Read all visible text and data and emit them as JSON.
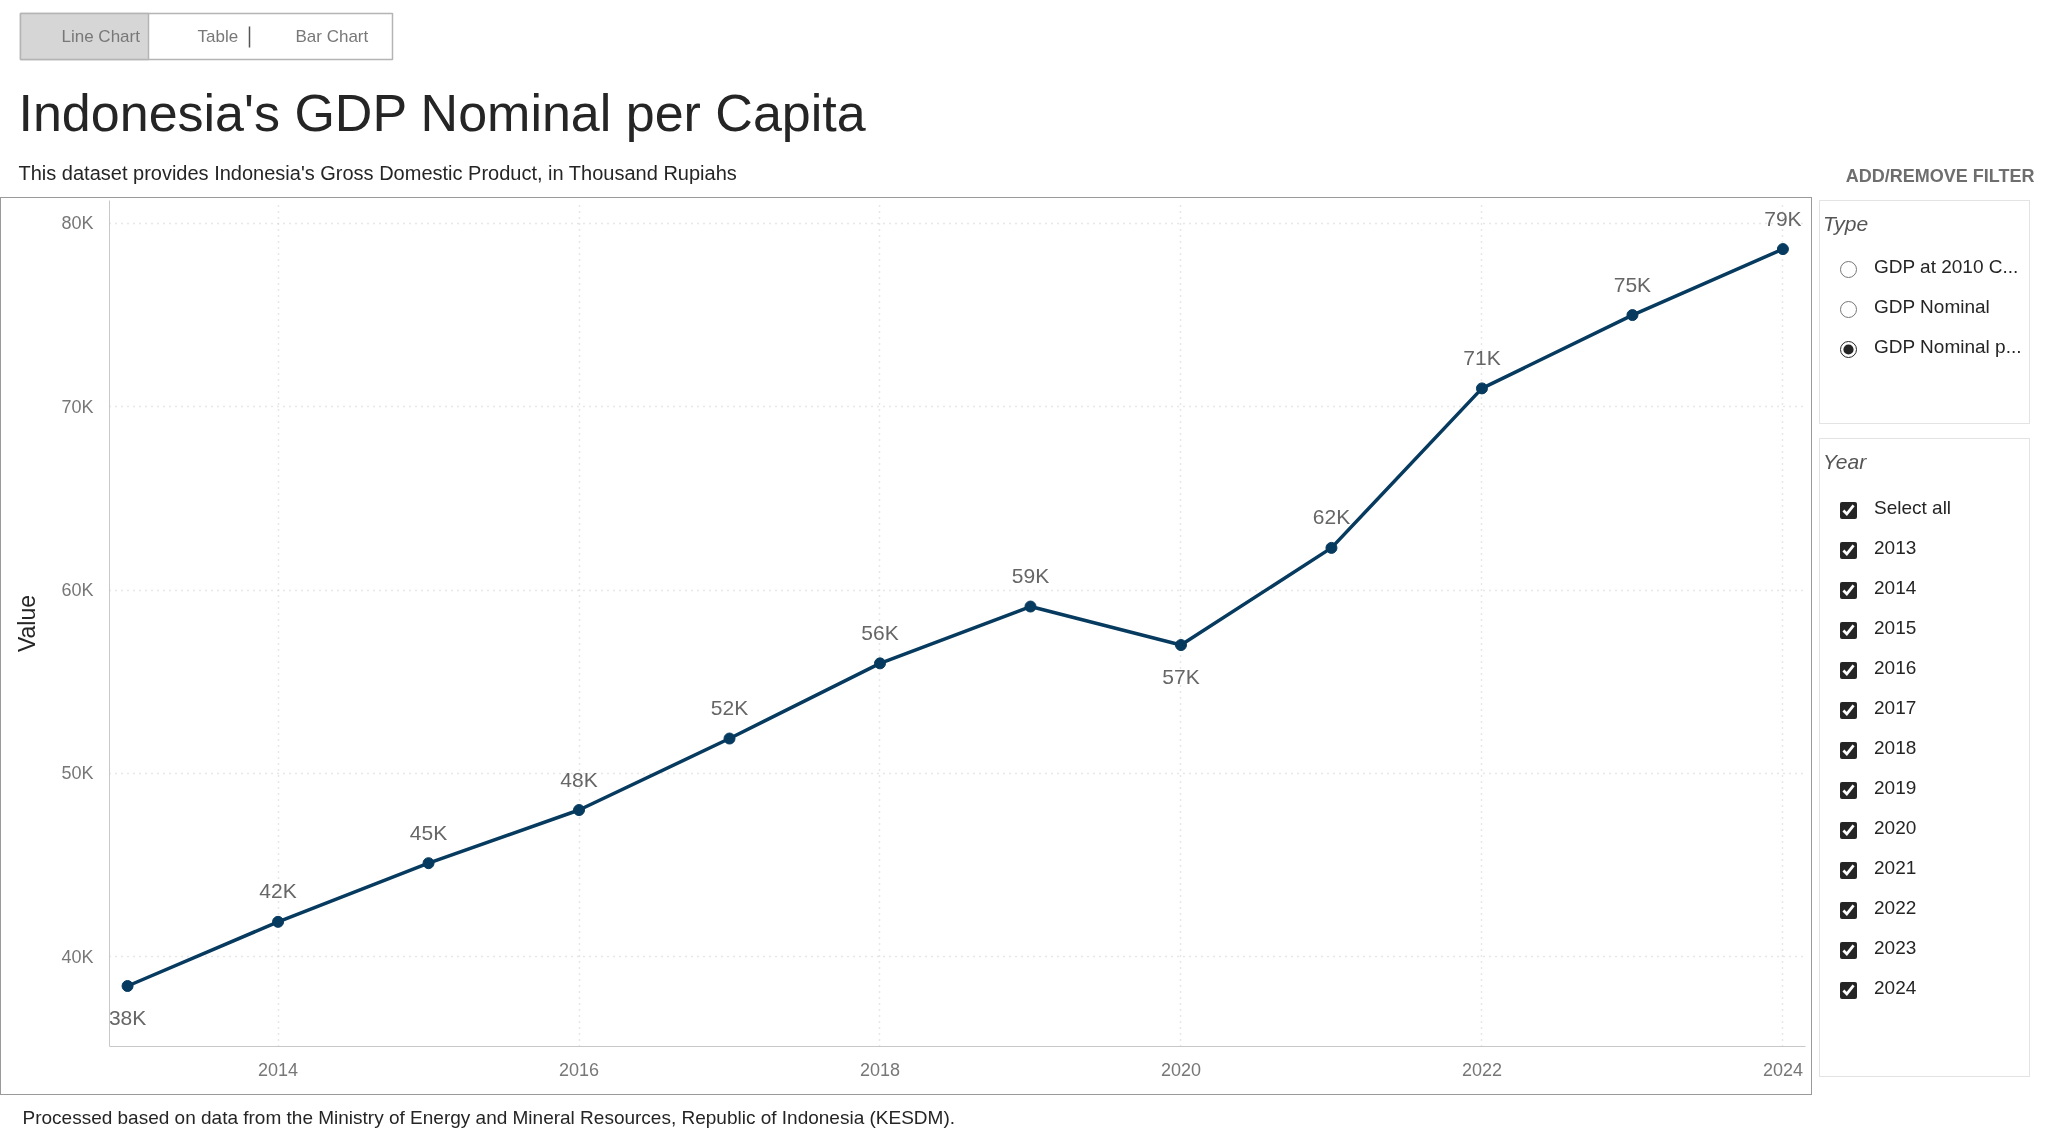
{
  "chart_data": {
    "type": "line",
    "title": "Indonesia's GDP Nominal per Capita",
    "subtitle": "This dataset provides Indonesia's Gross Domestic Product, in Thousand Rupiahs",
    "ylabel": "Value",
    "x": [
      2013,
      2014,
      2015,
      2016,
      2017,
      2018,
      2019,
      2020,
      2021,
      2022,
      2023,
      2024
    ],
    "values": [
      38400,
      41900,
      45100,
      48000,
      51900,
      56000,
      59100,
      57000,
      62300,
      71000,
      75000,
      78600
    ],
    "value_labels": [
      "38K",
      "42K",
      "45K",
      "48K",
      "52K",
      "56K",
      "59K",
      "57K",
      "62K",
      "71K",
      "75K",
      "79K"
    ],
    "color": "#063a5f",
    "marker": "circle",
    "line_style": "solid",
    "grid": true,
    "xlim": [
      2012.88,
      2024.15
    ],
    "xticks": [
      2014,
      2016,
      2018,
      2020,
      2022,
      2024
    ],
    "ylim": [
      35100,
      81250
    ],
    "yticks": [
      {
        "value": 40000,
        "label": "40K"
      },
      {
        "value": 50000,
        "label": "50K"
      },
      {
        "value": 60000,
        "label": "60K"
      },
      {
        "value": 70000,
        "label": "70K"
      },
      {
        "value": 80000,
        "label": "80K"
      }
    ],
    "annotations": [
      "Processed based on data from the Ministry of Energy and Mineral Resources, Republic of Indonesia (KESDM).",
      "Line Chart",
      "Table",
      "Bar Chart",
      "ADD/REMOVE FILTER",
      "Type",
      "GDP at 2010 C...",
      "GDP Nominal",
      "GDP Nominal p...",
      "Year",
      "Select all",
      "2013",
      "2014",
      "2015",
      "2016",
      "2017",
      "2018",
      "2019",
      "2020",
      "2021",
      "2022",
      "2023",
      "2024"
    ]
  }
}
